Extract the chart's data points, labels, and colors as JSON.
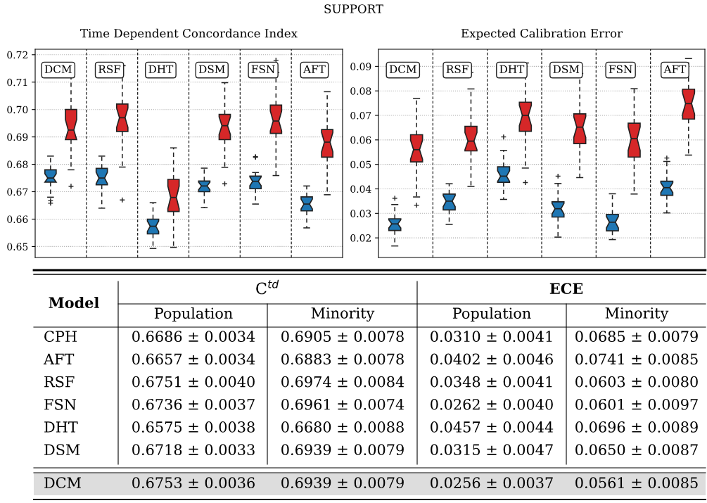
{
  "chart_data": [
    {
      "type": "box",
      "title": "Time Dependent Concordance Index",
      "annotations": [
        "SUPPORT"
      ],
      "categories": [
        "DCM",
        "RSF",
        "DHT",
        "DSM",
        "FSN",
        "AFT"
      ],
      "ylim": [
        0.646,
        0.722
      ],
      "yticks": [
        0.65,
        0.66,
        0.67,
        0.68,
        0.69,
        {
          "value": 0.7,
          "label": "0.70"
        },
        0.71,
        0.72
      ],
      "grid": "y",
      "tick_labels": "y",
      "legend": false,
      "series": [
        {
          "color": "#1f77b4",
          "boxes": [
            {
              "low": 0.668,
              "q1": 0.6735,
              "median": 0.675,
              "q3": 0.678,
              "high": 0.683,
              "outliers": [
                0.6667,
                0.6658
              ]
            },
            {
              "low": 0.664,
              "q1": 0.6725,
              "median": 0.675,
              "q3": 0.6785,
              "high": 0.683
            },
            {
              "low": 0.6493,
              "q1": 0.6546,
              "median": 0.6574,
              "q3": 0.66,
              "high": 0.666
            },
            {
              "low": 0.6642,
              "q1": 0.67,
              "median": 0.6721,
              "q3": 0.6739,
              "high": 0.6786
            },
            {
              "low": 0.6655,
              "q1": 0.6711,
              "median": 0.6738,
              "q3": 0.6757,
              "high": 0.677,
              "outliers": [
                0.6826,
                0.6828
              ]
            },
            {
              "low": 0.6568,
              "q1": 0.663,
              "median": 0.6655,
              "q3": 0.6681,
              "high": 0.6721
            }
          ]
        },
        {
          "color": "#d62728",
          "boxes": [
            {
              "low": 0.678,
              "q1": 0.689,
              "median": 0.6925,
              "q3": 0.7,
              "high": 0.712,
              "outliers": [
                0.672
              ]
            },
            {
              "low": 0.679,
              "q1": 0.692,
              "median": 0.697,
              "q3": 0.702,
              "high": 0.716,
              "outliers": [
                0.667
              ]
            },
            {
              "low": 0.6497,
              "q1": 0.6628,
              "median": 0.6679,
              "q3": 0.6745,
              "high": 0.686
            },
            {
              "low": 0.6789,
              "q1": 0.689,
              "median": 0.6941,
              "q3": 0.6982,
              "high": 0.7098,
              "outliers": [
                0.6729
              ]
            },
            {
              "low": 0.6759,
              "q1": 0.6913,
              "median": 0.6958,
              "q3": 0.7016,
              "high": 0.7135,
              "outliers": [
                0.718
              ]
            },
            {
              "low": 0.6689,
              "q1": 0.6826,
              "median": 0.6881,
              "q3": 0.6927,
              "high": 0.7065
            }
          ]
        }
      ]
    },
    {
      "type": "box",
      "title": "Expected Calibration Error",
      "categories": [
        "DCM",
        "RSF",
        "DHT",
        "DSM",
        "FSN",
        "AFT"
      ],
      "ylim": [
        0.012,
        0.097
      ],
      "yticks": [
        0.02,
        0.03,
        0.04,
        0.05,
        0.06,
        0.07,
        0.08,
        0.09
      ],
      "grid": "y",
      "tick_labels": "y",
      "legend": false,
      "series": [
        {
          "color": "#1f77b4",
          "boxes": [
            {
              "low": 0.0167,
              "q1": 0.023,
              "median": 0.0257,
              "q3": 0.0278,
              "high": 0.0336,
              "outliers": [
                0.0362
              ]
            },
            {
              "low": 0.0255,
              "q1": 0.0314,
              "median": 0.035,
              "q3": 0.0379,
              "high": 0.0421
            },
            {
              "low": 0.0357,
              "q1": 0.0427,
              "median": 0.0452,
              "q3": 0.049,
              "high": 0.0557,
              "outliers": [
                0.0612
              ]
            },
            {
              "low": 0.0203,
              "q1": 0.0285,
              "median": 0.0319,
              "q3": 0.0347,
              "high": 0.0422,
              "outliers": [
                0.0452
              ]
            },
            {
              "low": 0.0193,
              "q1": 0.0229,
              "median": 0.0264,
              "q3": 0.0296,
              "high": 0.038
            },
            {
              "low": 0.0302,
              "q1": 0.0374,
              "median": 0.0405,
              "q3": 0.0431,
              "high": 0.0512,
              "outliers": [
                0.0526
              ]
            }
          ]
        },
        {
          "color": "#d62728",
          "boxes": [
            {
              "low": 0.0367,
              "q1": 0.051,
              "median": 0.056,
              "q3": 0.0621,
              "high": 0.0769,
              "outliers": [
                0.0333
              ]
            },
            {
              "low": 0.041,
              "q1": 0.0555,
              "median": 0.0595,
              "q3": 0.0655,
              "high": 0.0808,
              "outliers": [
                0.0876
              ]
            },
            {
              "low": 0.0485,
              "q1": 0.0635,
              "median": 0.07,
              "q3": 0.0754,
              "high": 0.0914,
              "outliers": [
                0.0426
              ]
            },
            {
              "low": 0.0446,
              "q1": 0.0585,
              "median": 0.0652,
              "q3": 0.0706,
              "high": 0.0871
            },
            {
              "low": 0.0379,
              "q1": 0.053,
              "median": 0.0605,
              "q3": 0.0668,
              "high": 0.0809
            },
            {
              "low": 0.0538,
              "q1": 0.0685,
              "median": 0.0748,
              "q3": 0.0807,
              "high": 0.0932
            }
          ]
        }
      ]
    },
    {
      "type": "other",
      "annotations": [
        "Model",
        "C$^{td}$",
        "ECE"
      ],
      "categories": [
        "Population",
        "Minority",
        "Population",
        "Minority"
      ],
      "y_categories": [
        "CPH",
        "AFT",
        "RSF",
        "FSN",
        "DHT",
        "DSM",
        "DCM"
      ],
      "cell_labels": [
        [
          "0.6686 ± 0.0034",
          "0.6905 ± 0.0078",
          "0.0310 ± 0.0041",
          "0.0685 ± 0.0079"
        ],
        [
          "0.6657 ± 0.0034",
          "0.6883 ± 0.0078",
          "0.0402 ± 0.0046",
          "0.0741 ± 0.0085"
        ],
        [
          "0.6751 ± 0.0040",
          "0.6974 ± 0.0084",
          "0.0348 ± 0.0041",
          "0.0603 ± 0.0080"
        ],
        [
          "0.6736 ± 0.0037",
          "0.6961 ± 0.0074",
          "0.0262 ± 0.0040",
          "0.0601 ± 0.0097"
        ],
        [
          "0.6575 ± 0.0038",
          "0.6680 ± 0.0088",
          "0.0457 ± 0.0044",
          "0.0696 ± 0.0089"
        ],
        [
          "0.6718 ± 0.0033",
          "0.6939 ± 0.0079",
          "0.0315 ± 0.0047",
          "0.0650 ± 0.0087"
        ],
        [
          "0.6753 ± 0.0036",
          "0.6939 ± 0.0079",
          "0.0256 ± 0.0037",
          "0.0561 ± 0.0085"
        ]
      ]
    }
  ]
}
